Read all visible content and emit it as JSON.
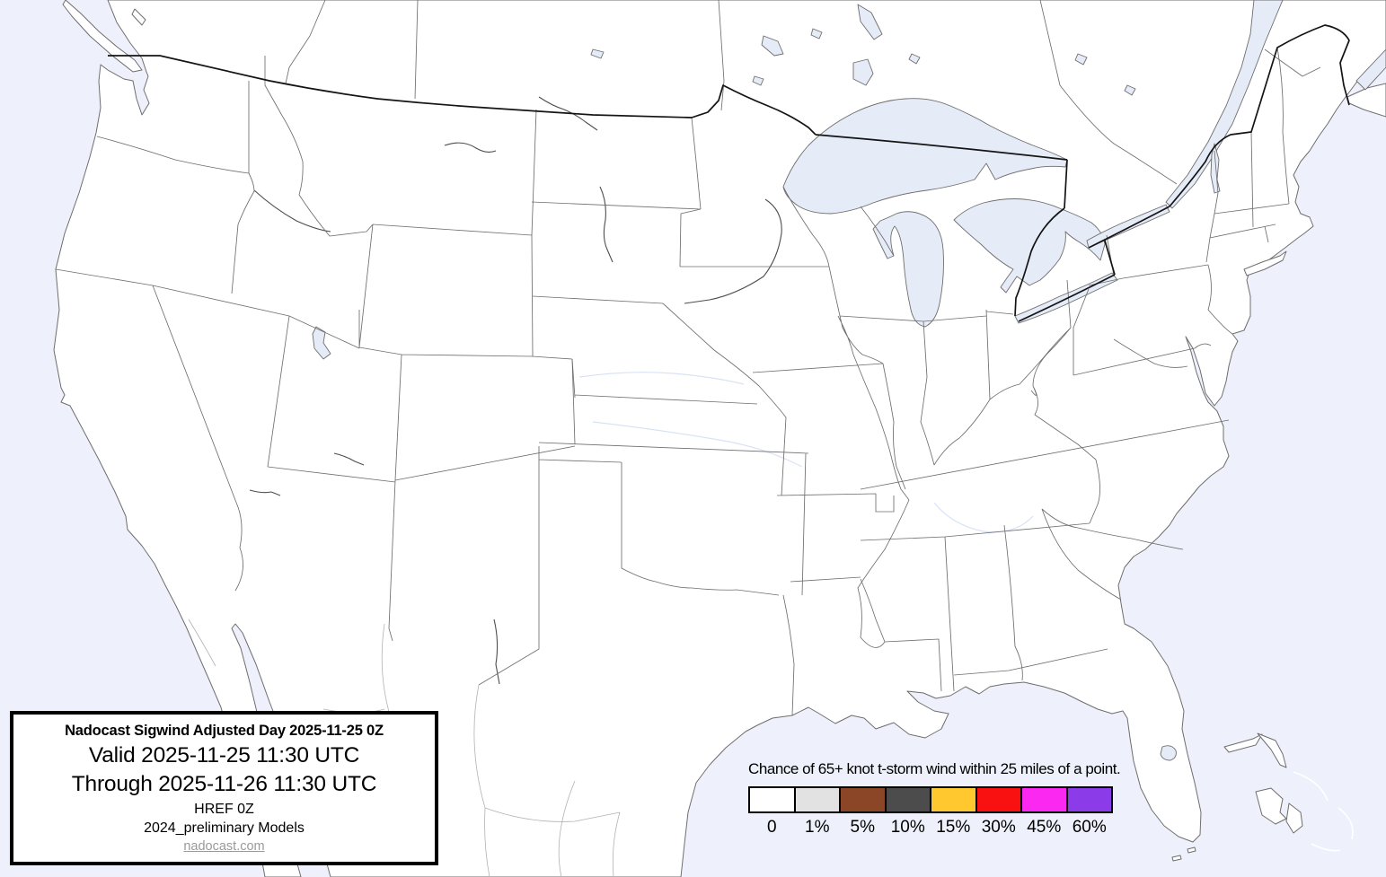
{
  "map": {
    "description": "CONUS base map with state outlines",
    "water_color": "#e6ebf8",
    "ocean_color": "#eef1fb",
    "land_color": "#ffffff",
    "border_color": "#6e6e6e"
  },
  "info_box": {
    "line1": "Nadocast Sigwind Adjusted Day 2025-11-25 0Z",
    "line2": "Valid 2025-11-25 11:30 UTC",
    "line3": "Through 2025-11-26 11:30 UTC",
    "line4": "HREF 0Z",
    "line5": "2024_preliminary Models",
    "link": "nadocast.com"
  },
  "legend": {
    "title": "Chance of 65+ knot t-storm wind within 25 miles of a point.",
    "items": [
      {
        "label": "0",
        "color": "#ffffff"
      },
      {
        "label": "1%",
        "color": "#e2e2e2"
      },
      {
        "label": "5%",
        "color": "#8b4627"
      },
      {
        "label": "10%",
        "color": "#4c4c4c"
      },
      {
        "label": "15%",
        "color": "#ffc82f"
      },
      {
        "label": "30%",
        "color": "#f91111"
      },
      {
        "label": "45%",
        "color": "#fb28f1"
      },
      {
        "label": "60%",
        "color": "#8c3be8"
      }
    ]
  }
}
